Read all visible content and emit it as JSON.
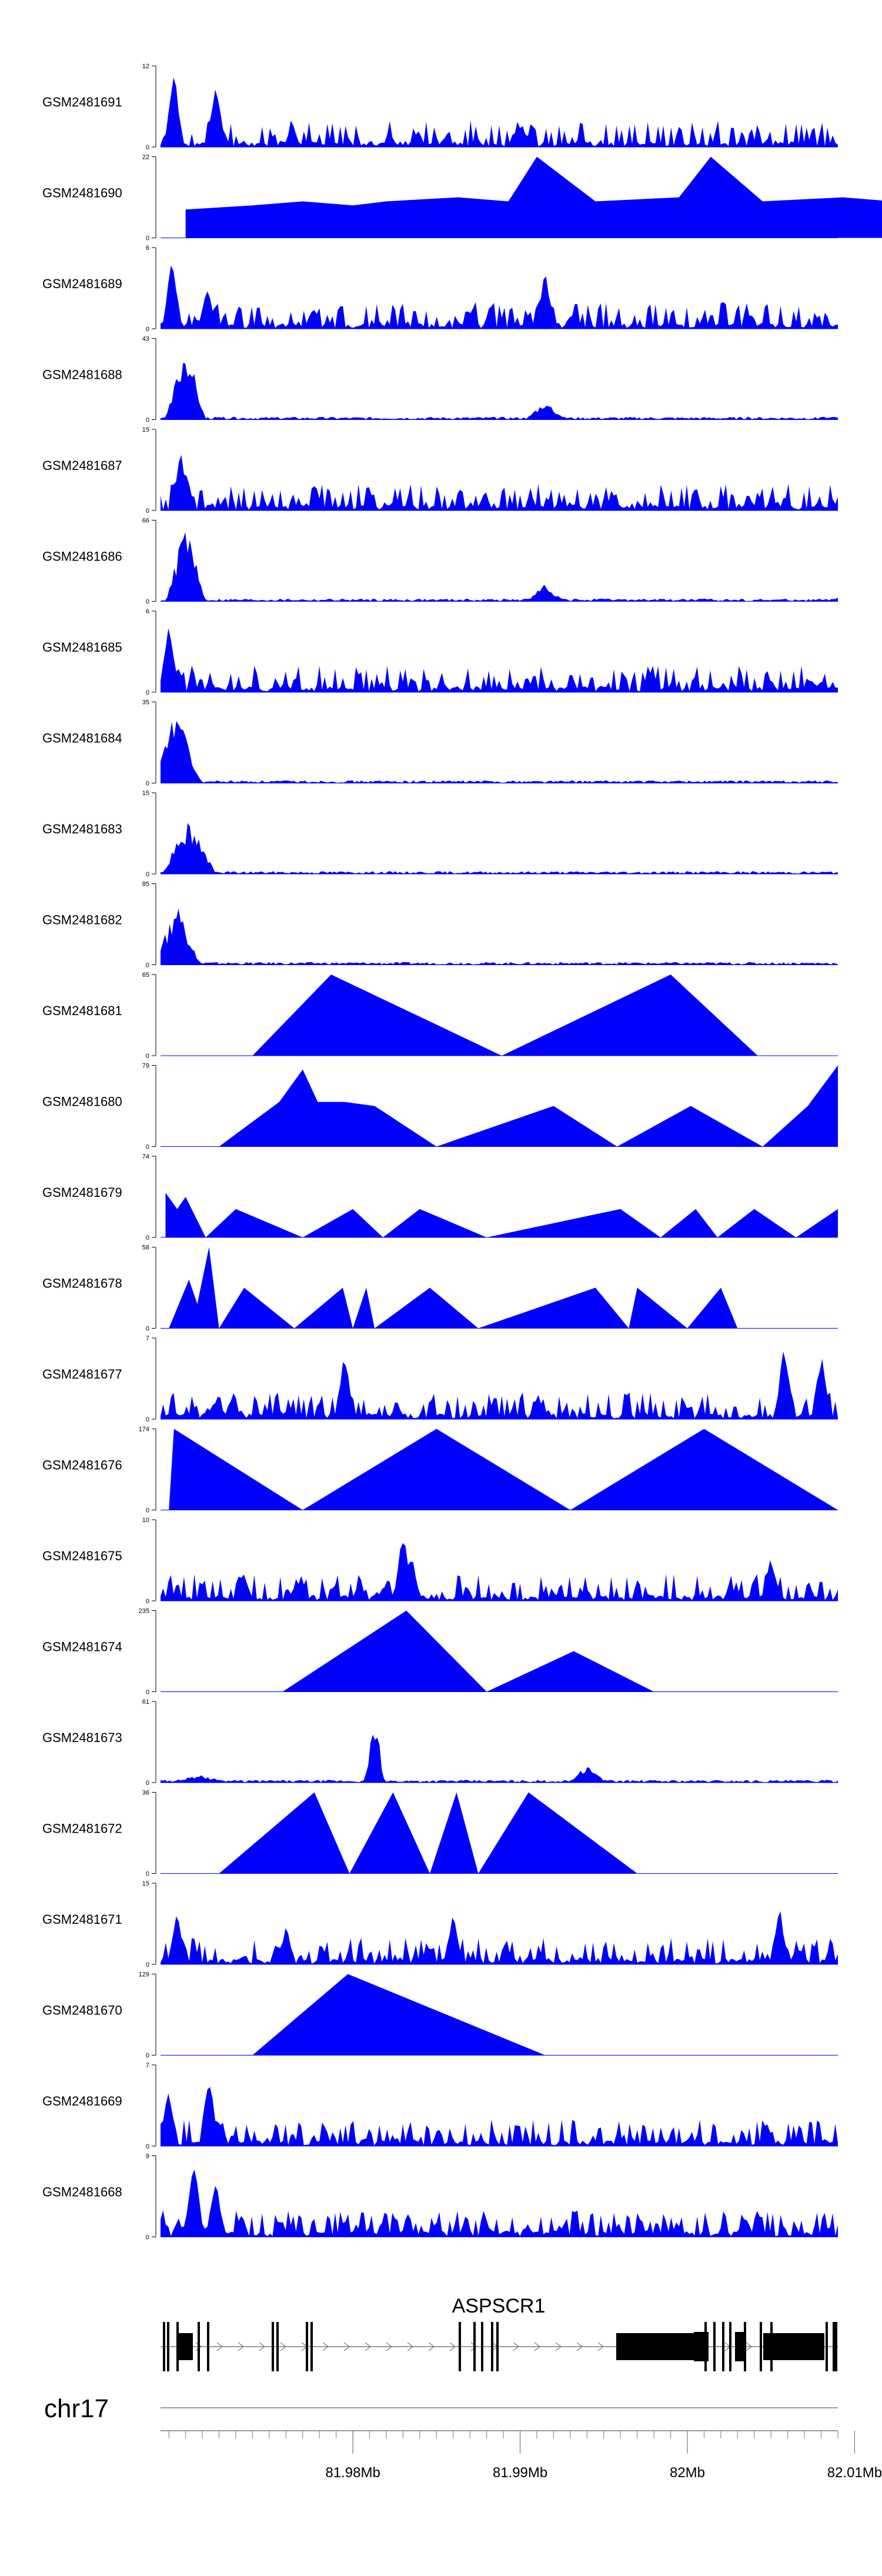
{
  "chart_data": {
    "type": "area",
    "title": "",
    "region": {
      "chrom": "chr17",
      "start_mb": 81.9685,
      "end_mb": 82.009
    },
    "x_ticks": [
      {
        "value": 81.98,
        "label": "81.98Mb"
      },
      {
        "value": 81.99,
        "label": "81.99Mb"
      },
      {
        "value": 82.0,
        "label": "82Mb"
      },
      {
        "value": 82.01,
        "label": "82.01Mb"
      }
    ],
    "chromosome_label": "chr17",
    "gene": {
      "name": "ASPSCR1"
    },
    "tracks": [
      {
        "name": "GSM2481691",
        "ymax": 12,
        "kind": "dense",
        "seed": 11,
        "peaks": [
          [
            81.9693,
            1.0
          ],
          [
            81.9718,
            0.85
          ]
        ]
      },
      {
        "name": "GSM2481690",
        "ymax": 22,
        "kind": "tri",
        "seed": 12,
        "peaks": [
          [
            81.97,
            0.35
          ],
          [
            81.974,
            0.4
          ],
          [
            81.977,
            0.45
          ],
          [
            81.98,
            0.4
          ],
          [
            81.982,
            0.45
          ],
          [
            81.9863,
            0.5
          ],
          [
            81.9893,
            0.45
          ],
          [
            81.991,
            1.0
          ],
          [
            81.9945,
            0.45
          ],
          [
            81.9995,
            0.5
          ],
          [
            82.0014,
            1.0
          ],
          [
            82.0045,
            0.45
          ],
          [
            82.0093,
            0.5
          ],
          [
            82.0123,
            0.45
          ],
          [
            82.014,
            0.45
          ],
          [
            82.0155,
            0.45
          ],
          [
            82.0165,
            0.45
          ],
          [
            82.018,
            0.45
          ],
          [
            82.019,
            0.0
          ]
        ]
      },
      {
        "name": "GSM2481689",
        "ymax": 6,
        "kind": "dense",
        "seed": 13,
        "peaks": [
          [
            81.9692,
            0.95
          ],
          [
            81.9713,
            0.55
          ],
          [
            81.9915,
            0.75
          ]
        ]
      },
      {
        "name": "GSM2481688",
        "ymax": 43,
        "kind": "cluster",
        "seed": 14,
        "peaks": [
          [
            81.97,
            1.0,
            0.0012
          ],
          [
            81.9915,
            0.25,
            0.0012
          ],
          [
            82.0096,
            0.06,
            0.002
          ]
        ]
      },
      {
        "name": "GSM2481687",
        "ymax": 15,
        "kind": "dense",
        "seed": 15,
        "peaks": [
          [
            81.9697,
            0.8
          ],
          [
            81.97,
            0.55
          ]
        ]
      },
      {
        "name": "GSM2481686",
        "ymax": 66,
        "kind": "cluster",
        "seed": 16,
        "peaks": [
          [
            81.97,
            1.0,
            0.0012
          ],
          [
            81.9915,
            0.22,
            0.0012
          ],
          [
            82.0095,
            0.08,
            0.0012
          ]
        ]
      },
      {
        "name": "GSM2481685",
        "ymax": 6,
        "kind": "dense",
        "seed": 17,
        "peaks": [
          [
            81.969,
            0.95
          ]
        ]
      },
      {
        "name": "GSM2481684",
        "ymax": 35,
        "kind": "cluster",
        "seed": 18,
        "peaks": [
          [
            81.9695,
            1.0,
            0.0014
          ]
        ]
      },
      {
        "name": "GSM2481683",
        "ymax": 15,
        "kind": "cluster",
        "seed": 19,
        "peaks": [
          [
            81.9702,
            0.75,
            0.0016
          ]
        ]
      },
      {
        "name": "GSM2481682",
        "ymax": 85,
        "kind": "cluster",
        "seed": 20,
        "peaks": [
          [
            81.9695,
            0.8,
            0.0014
          ]
        ]
      },
      {
        "name": "GSM2481681",
        "ymax": 65,
        "kind": "tri",
        "seed": 21,
        "peaks": [
          [
            81.974,
            0.0
          ],
          [
            81.9787,
            1.0
          ],
          [
            81.9889,
            0.0
          ],
          [
            81.999,
            1.0
          ],
          [
            82.0042,
            0.0
          ]
        ]
      },
      {
        "name": "GSM2481680",
        "ymax": 79,
        "kind": "tri",
        "seed": 22,
        "peaks": [
          [
            81.972,
            0.0
          ],
          [
            81.9756,
            0.55
          ],
          [
            81.977,
            0.95
          ],
          [
            81.9779,
            0.55
          ],
          [
            81.9795,
            0.55
          ],
          [
            81.9813,
            0.5
          ],
          [
            81.985,
            0.0
          ],
          [
            81.992,
            0.5
          ],
          [
            81.9958,
            0.0
          ],
          [
            82.0002,
            0.5
          ],
          [
            82.0045,
            0.0
          ],
          [
            82.0072,
            0.5
          ],
          [
            82.009,
            1.0
          ]
        ]
      },
      {
        "name": "GSM2481679",
        "ymax": 74,
        "kind": "tri",
        "seed": 23,
        "peaks": [
          [
            81.9688,
            0.55
          ],
          [
            81.9695,
            0.35
          ],
          [
            81.97,
            0.5
          ],
          [
            81.9712,
            0.0
          ],
          [
            81.973,
            0.35
          ],
          [
            81.977,
            0.0
          ],
          [
            81.98,
            0.35
          ],
          [
            81.9818,
            0.0
          ],
          [
            81.984,
            0.35
          ],
          [
            81.988,
            0.0
          ],
          [
            81.996,
            0.35
          ],
          [
            81.9984,
            0.0
          ],
          [
            82.0005,
            0.35
          ],
          [
            82.0018,
            0.0
          ],
          [
            82.004,
            0.35
          ],
          [
            82.0065,
            0.0
          ],
          [
            82.009,
            0.35
          ]
        ]
      },
      {
        "name": "GSM2481678",
        "ymax": 58,
        "kind": "tri",
        "seed": 24,
        "peaks": [
          [
            81.969,
            0.0
          ],
          [
            81.9702,
            0.6
          ],
          [
            81.9707,
            0.3
          ],
          [
            81.9714,
            1.0
          ],
          [
            81.972,
            0.0
          ],
          [
            81.9735,
            0.5
          ],
          [
            81.9765,
            0.0
          ],
          [
            81.9794,
            0.5
          ],
          [
            81.98,
            0.0
          ],
          [
            81.9808,
            0.5
          ],
          [
            81.9813,
            0.0
          ],
          [
            81.9846,
            0.5
          ],
          [
            81.9875,
            0.0
          ],
          [
            81.9945,
            0.5
          ],
          [
            81.9965,
            0.0
          ],
          [
            81.997,
            0.5
          ],
          [
            82.0,
            0.0
          ],
          [
            82.002,
            0.5
          ],
          [
            82.003,
            0.0
          ]
        ]
      },
      {
        "name": "GSM2481677",
        "ymax": 7,
        "kind": "dense",
        "seed": 25,
        "peaks": [
          [
            81.9795,
            0.85
          ],
          [
            82.0058,
            1.0
          ],
          [
            82.008,
            0.85
          ]
        ]
      },
      {
        "name": "GSM2481676",
        "ymax": 174,
        "kind": "tri",
        "seed": 26,
        "peaks": [
          [
            81.969,
            0.0
          ],
          [
            81.9693,
            1.0
          ],
          [
            81.977,
            0.0
          ],
          [
            81.985,
            1.0
          ],
          [
            81.993,
            0.0
          ],
          [
            82.001,
            1.0
          ],
          [
            82.009,
            0.0
          ]
        ]
      },
      {
        "name": "GSM2481675",
        "ymax": 10,
        "kind": "dense",
        "seed": 27,
        "peaks": [
          [
            81.983,
            0.9
          ],
          [
            81.9835,
            0.6
          ],
          [
            82.005,
            0.6
          ]
        ]
      },
      {
        "name": "GSM2481674",
        "ymax": 235,
        "kind": "tri",
        "seed": 28,
        "peaks": [
          [
            81.9758,
            0.0
          ],
          [
            81.9832,
            1.0
          ],
          [
            81.988,
            0.0
          ],
          [
            81.9932,
            0.5
          ],
          [
            81.998,
            0.0
          ]
        ]
      },
      {
        "name": "GSM2481673",
        "ymax": 61,
        "kind": "cluster",
        "seed": 29,
        "peaks": [
          [
            81.9708,
            0.1,
            0.002
          ],
          [
            81.9813,
            0.92,
            0.0006
          ],
          [
            81.994,
            0.22,
            0.0012
          ]
        ]
      },
      {
        "name": "GSM2481672",
        "ymax": 36,
        "kind": "tri",
        "seed": 30,
        "peaks": [
          [
            81.972,
            0.0
          ],
          [
            81.9777,
            1.0
          ],
          [
            81.9798,
            0.0
          ],
          [
            81.9824,
            1.0
          ],
          [
            81.9846,
            0.0
          ],
          [
            81.9862,
            1.0
          ],
          [
            81.9875,
            0.0
          ],
          [
            81.9905,
            1.0
          ],
          [
            81.997,
            0.0
          ]
        ]
      },
      {
        "name": "GSM2481671",
        "ymax": 15,
        "kind": "dense",
        "seed": 31,
        "peaks": [
          [
            81.9695,
            0.7
          ],
          [
            81.976,
            0.5
          ],
          [
            81.986,
            0.65
          ],
          [
            82.0055,
            0.75
          ]
        ]
      },
      {
        "name": "GSM2481670",
        "ymax": 129,
        "kind": "tri",
        "seed": 32,
        "peaks": [
          [
            81.974,
            0.0
          ],
          [
            81.9797,
            1.0
          ],
          [
            81.9915,
            0.0
          ]
        ]
      },
      {
        "name": "GSM2481669",
        "ymax": 7,
        "kind": "dense",
        "seed": 33,
        "peaks": [
          [
            81.969,
            0.75
          ],
          [
            81.9714,
            1.0
          ]
        ]
      },
      {
        "name": "GSM2481668",
        "ymax": 9,
        "kind": "dense",
        "seed": 34,
        "peaks": [
          [
            81.9705,
            1.0
          ],
          [
            81.9718,
            0.75
          ]
        ]
      }
    ]
  }
}
